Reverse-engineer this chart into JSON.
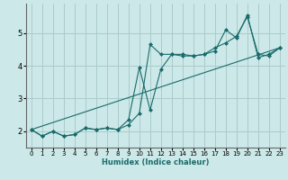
{
  "xlabel": "Humidex (Indice chaleur)",
  "background_color": "#cce8e8",
  "grid_color": "#aacccc",
  "line_color": "#1a6b6b",
  "xlim": [
    -0.5,
    23.5
  ],
  "ylim": [
    1.5,
    5.9
  ],
  "yticks": [
    2,
    3,
    4,
    5
  ],
  "xticks": [
    0,
    1,
    2,
    3,
    4,
    5,
    6,
    7,
    8,
    9,
    10,
    11,
    12,
    13,
    14,
    15,
    16,
    17,
    18,
    19,
    20,
    21,
    22,
    23
  ],
  "series1_x": [
    0,
    1,
    2,
    3,
    4,
    5,
    6,
    7,
    8,
    9,
    10,
    11,
    12,
    13,
    14,
    15,
    16,
    17,
    18,
    19,
    20,
    21,
    22,
    23
  ],
  "series1_y": [
    2.05,
    1.85,
    2.0,
    1.85,
    1.9,
    2.1,
    2.05,
    2.1,
    2.05,
    2.2,
    2.55,
    4.65,
    4.35,
    4.35,
    4.35,
    4.3,
    4.35,
    4.45,
    5.1,
    4.85,
    5.55,
    4.25,
    4.35,
    4.55
  ],
  "series2_x": [
    0,
    1,
    2,
    3,
    4,
    5,
    6,
    7,
    8,
    9,
    10,
    11,
    12,
    13,
    14,
    15,
    16,
    17,
    18,
    19,
    20,
    21,
    22,
    23
  ],
  "series2_y": [
    2.05,
    1.85,
    2.0,
    1.85,
    1.9,
    2.1,
    2.05,
    2.1,
    2.05,
    2.35,
    3.95,
    2.65,
    3.9,
    4.35,
    4.3,
    4.3,
    4.35,
    4.55,
    4.7,
    4.9,
    5.5,
    4.35,
    4.3,
    4.55
  ],
  "series3_x": [
    0,
    23
  ],
  "series3_y": [
    2.05,
    4.55
  ]
}
